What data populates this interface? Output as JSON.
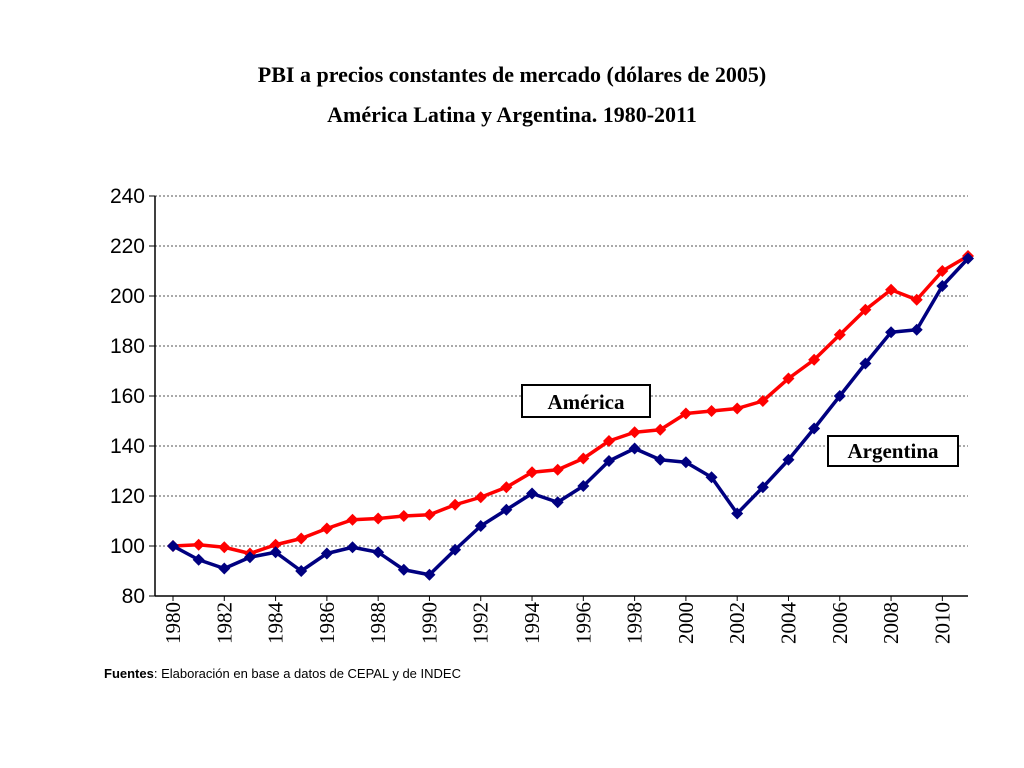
{
  "chart_data": {
    "type": "line",
    "title": "PBI a precios constantes de mercado (dólares de 2005)",
    "subtitle": "América Latina y Argentina. 1980-2011",
    "xlabel": "",
    "ylabel": "",
    "ylim": [
      80,
      240
    ],
    "yticks": [
      "80",
      "100",
      "120",
      "140",
      "160",
      "180",
      "200",
      "220",
      "240"
    ],
    "xticks": [
      "1980",
      "1982",
      "1984",
      "1986",
      "1988",
      "1990",
      "1992",
      "1994",
      "1996",
      "1998",
      "2000",
      "2002",
      "2004",
      "2006",
      "2008",
      "2010"
    ],
    "x": [
      1980,
      1981,
      1982,
      1983,
      1984,
      1985,
      1986,
      1987,
      1988,
      1989,
      1990,
      1991,
      1992,
      1993,
      1994,
      1995,
      1996,
      1997,
      1998,
      1999,
      2000,
      2001,
      2002,
      2003,
      2004,
      2005,
      2006,
      2007,
      2008,
      2009,
      2010,
      2011
    ],
    "grid": "horizontal dashed",
    "series": [
      {
        "name": "América",
        "color": "#ff0000",
        "values": [
          100,
          100.5,
          99.5,
          97,
          100.5,
          103,
          107,
          110.5,
          111,
          112,
          112.5,
          116.5,
          119.5,
          123.5,
          129.5,
          130.5,
          135,
          142,
          145.5,
          146.5,
          153,
          154,
          155,
          158,
          167,
          174.5,
          184.5,
          194.5,
          202.5,
          198.5,
          210,
          216
        ]
      },
      {
        "name": "Argentina",
        "color": "#000080",
        "values": [
          100,
          94.5,
          91,
          95.5,
          97.5,
          90,
          97,
          99.5,
          97.5,
          90.5,
          88.5,
          98.5,
          108,
          114.5,
          121,
          117.5,
          124,
          134,
          139,
          134.5,
          133.5,
          127.5,
          113,
          123.5,
          134.5,
          147,
          160,
          173,
          185.5,
          186.5,
          204,
          215
        ]
      }
    ]
  },
  "source": {
    "label": "Fuentes",
    "text": ": Elaboración en base a datos de CEPAL y de INDEC"
  }
}
